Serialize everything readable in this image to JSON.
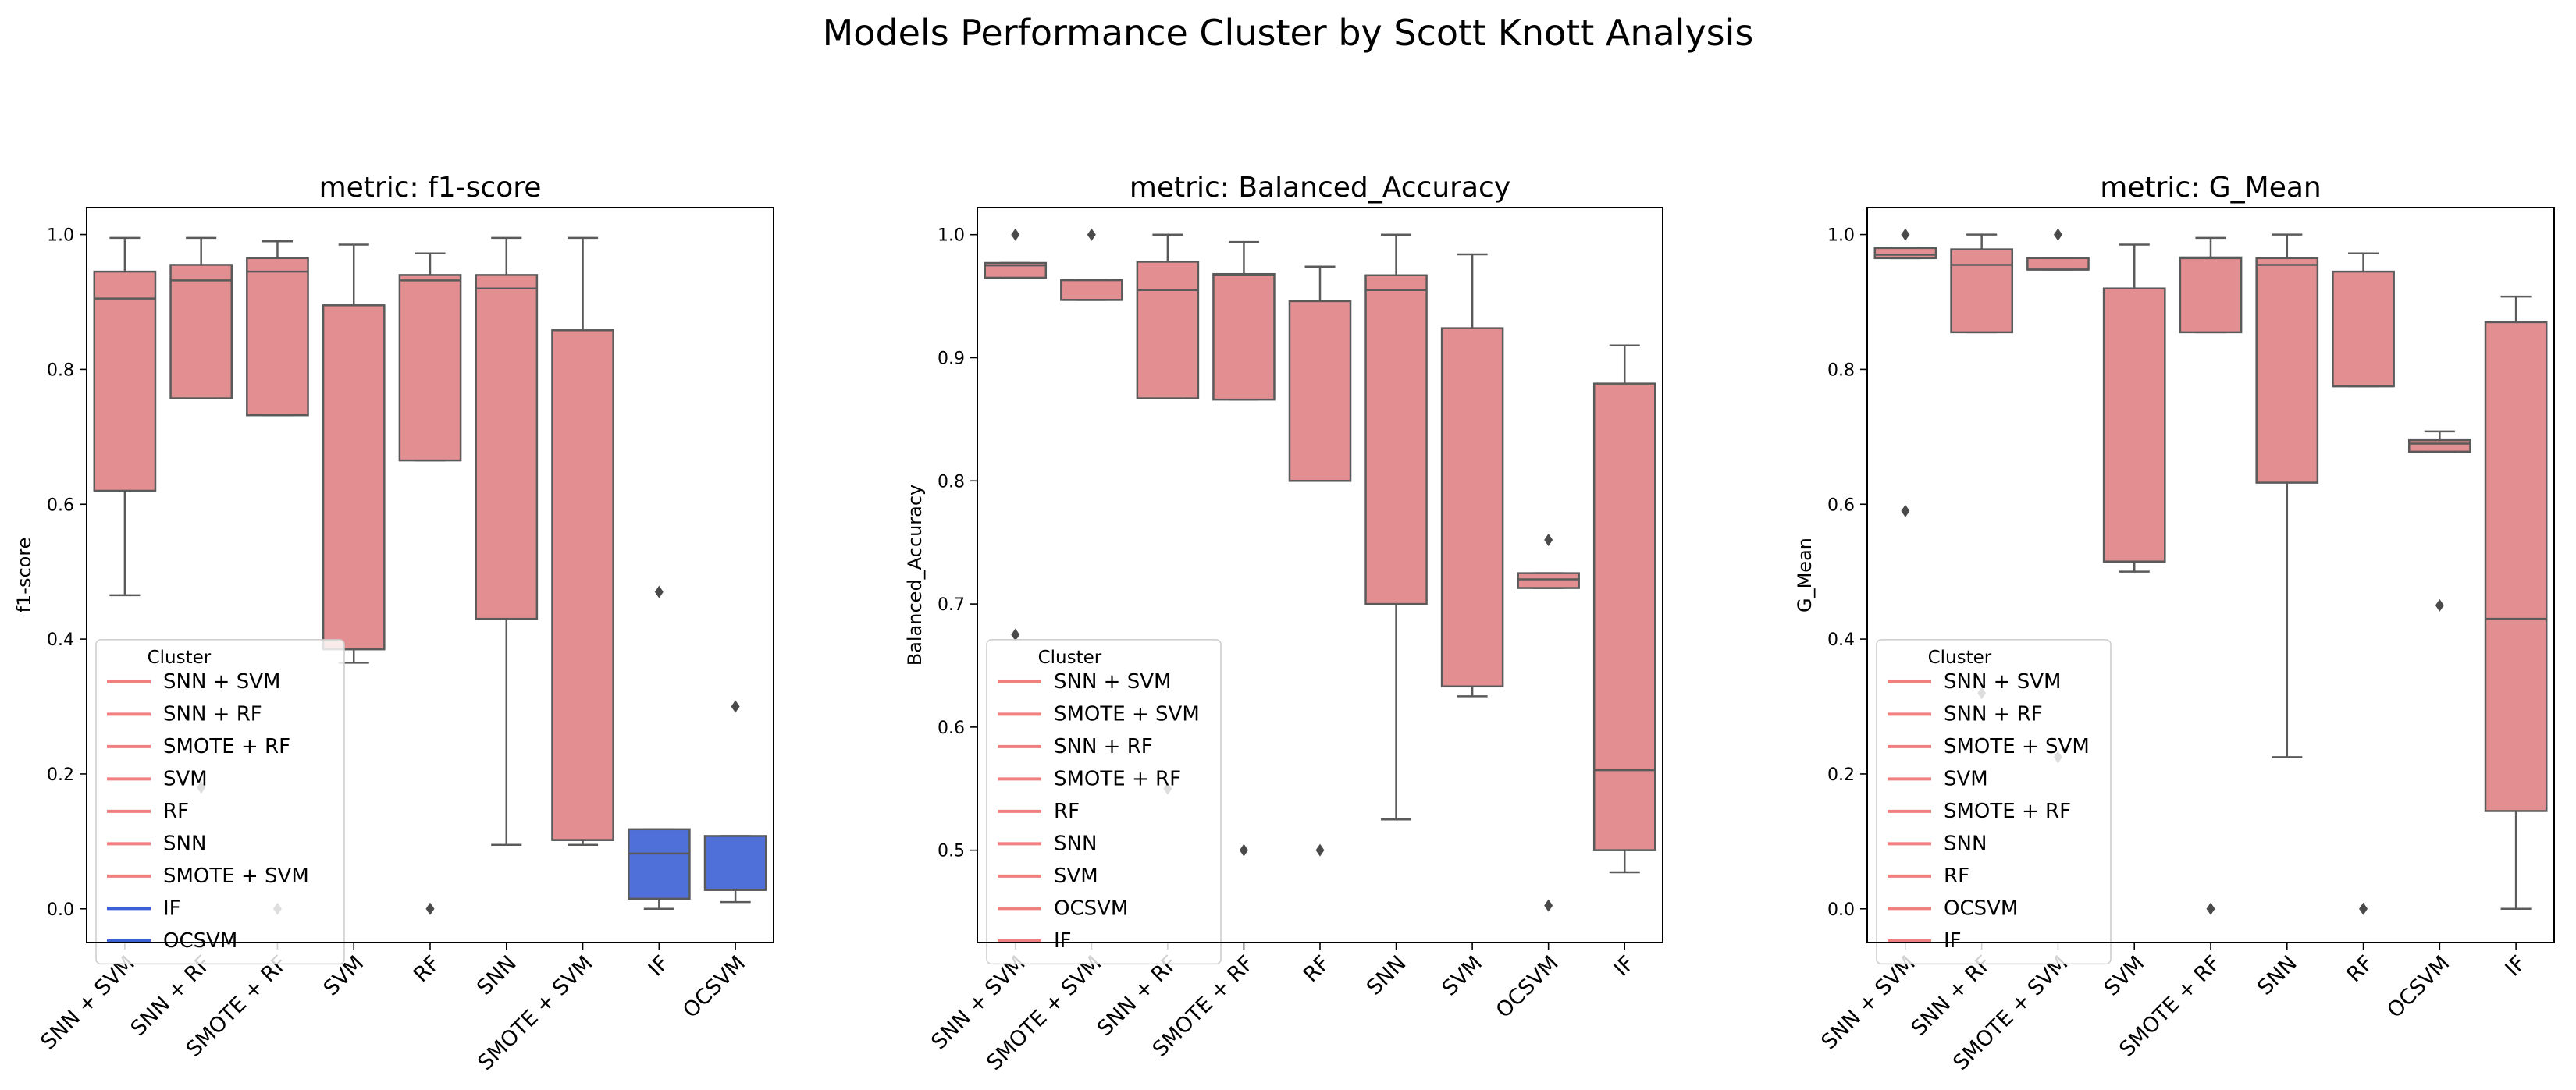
{
  "colors": {
    "pink": "#e38f91",
    "blue": "#4f6fd9",
    "legend_pink": "#f07f7f",
    "legend_blue": "#3b5fd6",
    "line": "#5a5a5a"
  },
  "chart_data": [
    {
      "type": "box",
      "figure_title": "Models Performance Cluster by Scott Knott Analysis",
      "title": "metric: f1-score",
      "ylabel": "f1-score",
      "xlabel": "",
      "ylim": [
        -0.05,
        1.04
      ],
      "yticks": [
        0.0,
        0.2,
        0.4,
        0.6,
        0.8,
        1.0
      ],
      "ytick_labels": [
        "0.0",
        "0.2",
        "0.4",
        "0.6",
        "0.8",
        "1.0"
      ],
      "categories": [
        "SNN + SVM",
        "SNN + RF",
        "SMOTE + RF",
        "SVM",
        "RF",
        "SNN",
        "SMOTE + SVM",
        "IF",
        "OCSVM"
      ],
      "boxes": [
        {
          "whisker_low": 0.465,
          "q1": 0.62,
          "median": 0.905,
          "q3": 0.945,
          "whisker_high": 0.995,
          "outliers": [],
          "cluster": 1
        },
        {
          "whisker_low": 0.757,
          "q1": 0.757,
          "median": 0.932,
          "q3": 0.955,
          "whisker_high": 0.995,
          "outliers": [
            0.18
          ],
          "cluster": 1
        },
        {
          "whisker_low": 0.732,
          "q1": 0.732,
          "median": 0.945,
          "q3": 0.965,
          "whisker_high": 0.99,
          "outliers": [
            0.0
          ],
          "cluster": 1
        },
        {
          "whisker_low": 0.365,
          "q1": 0.385,
          "median": 0.385,
          "q3": 0.895,
          "whisker_high": 0.985,
          "outliers": [],
          "cluster": 1
        },
        {
          "whisker_low": 0.665,
          "q1": 0.665,
          "median": 0.932,
          "q3": 0.94,
          "whisker_high": 0.972,
          "outliers": [
            0.0
          ],
          "cluster": 1
        },
        {
          "whisker_low": 0.095,
          "q1": 0.43,
          "median": 0.92,
          "q3": 0.94,
          "whisker_high": 0.995,
          "outliers": [],
          "cluster": 1
        },
        {
          "whisker_low": 0.095,
          "q1": 0.102,
          "median": 0.102,
          "q3": 0.858,
          "whisker_high": 0.995,
          "outliers": [],
          "cluster": 1
        },
        {
          "whisker_low": 0.0,
          "q1": 0.015,
          "median": 0.082,
          "q3": 0.118,
          "whisker_high": 0.118,
          "outliers": [
            0.47
          ],
          "cluster": 2
        },
        {
          "whisker_low": 0.01,
          "q1": 0.028,
          "median": 0.028,
          "q3": 0.108,
          "whisker_high": 0.108,
          "outliers": [
            0.3
          ],
          "cluster": 2
        }
      ],
      "legend_title": "Cluster",
      "legend": [
        {
          "label": "SNN + SVM",
          "cluster": 1
        },
        {
          "label": "SNN + RF",
          "cluster": 1
        },
        {
          "label": "SMOTE + RF",
          "cluster": 1
        },
        {
          "label": "SVM",
          "cluster": 1
        },
        {
          "label": "RF",
          "cluster": 1
        },
        {
          "label": "SNN",
          "cluster": 1
        },
        {
          "label": "SMOTE + SVM",
          "cluster": 1
        },
        {
          "label": "IF",
          "cluster": 2
        },
        {
          "label": "OCSVM",
          "cluster": 2
        }
      ],
      "legend_position": "lower-left"
    },
    {
      "type": "box",
      "title": "metric: Balanced_Accuracy",
      "ylabel": "Balanced_Accuracy",
      "xlabel": "",
      "ylim": [
        0.425,
        1.022
      ],
      "yticks": [
        0.5,
        0.6,
        0.7,
        0.8,
        0.9,
        1.0
      ],
      "ytick_labels": [
        "0.5",
        "0.6",
        "0.7",
        "0.8",
        "0.9",
        "1.0"
      ],
      "categories": [
        "SNN + SVM",
        "SMOTE + SVM",
        "SNN + RF",
        "SMOTE + RF",
        "RF",
        "SNN",
        "SVM",
        "OCSVM",
        "IF"
      ],
      "boxes": [
        {
          "whisker_low": 0.965,
          "q1": 0.965,
          "median": 0.975,
          "q3": 0.977,
          "whisker_high": 0.977,
          "outliers": [
            1.0,
            0.675
          ],
          "cluster": 1
        },
        {
          "whisker_low": 0.947,
          "q1": 0.947,
          "median": 0.947,
          "q3": 0.963,
          "whisker_high": 0.963,
          "outliers": [
            1.0
          ],
          "cluster": 1
        },
        {
          "whisker_low": 0.867,
          "q1": 0.867,
          "median": 0.955,
          "q3": 0.978,
          "whisker_high": 1.0,
          "outliers": [
            0.55
          ],
          "cluster": 1
        },
        {
          "whisker_low": 0.866,
          "q1": 0.866,
          "median": 0.967,
          "q3": 0.968,
          "whisker_high": 0.994,
          "outliers": [
            0.5
          ],
          "cluster": 1
        },
        {
          "whisker_low": 0.8,
          "q1": 0.8,
          "median": 0.8,
          "q3": 0.946,
          "whisker_high": 0.974,
          "outliers": [
            0.5
          ],
          "cluster": 1
        },
        {
          "whisker_low": 0.525,
          "q1": 0.7,
          "median": 0.955,
          "q3": 0.967,
          "whisker_high": 1.0,
          "outliers": [],
          "cluster": 1
        },
        {
          "whisker_low": 0.625,
          "q1": 0.633,
          "median": 0.633,
          "q3": 0.924,
          "whisker_high": 0.984,
          "outliers": [],
          "cluster": 1
        },
        {
          "whisker_low": 0.713,
          "q1": 0.713,
          "median": 0.72,
          "q3": 0.725,
          "whisker_high": 0.725,
          "outliers": [
            0.752,
            0.455
          ],
          "cluster": 1
        },
        {
          "whisker_low": 0.482,
          "q1": 0.5,
          "median": 0.565,
          "q3": 0.879,
          "whisker_high": 0.91,
          "outliers": [],
          "cluster": 1
        }
      ],
      "legend_title": "Cluster",
      "legend": [
        {
          "label": "SNN + SVM",
          "cluster": 1
        },
        {
          "label": "SMOTE + SVM",
          "cluster": 1
        },
        {
          "label": "SNN + RF",
          "cluster": 1
        },
        {
          "label": "SMOTE + RF",
          "cluster": 1
        },
        {
          "label": "RF",
          "cluster": 1
        },
        {
          "label": "SNN",
          "cluster": 1
        },
        {
          "label": "SVM",
          "cluster": 1
        },
        {
          "label": "OCSVM",
          "cluster": 1
        },
        {
          "label": "IF",
          "cluster": 1
        }
      ],
      "legend_position": "lower-left"
    },
    {
      "type": "box",
      "title": "metric: G_Mean",
      "ylabel": "G_Mean",
      "xlabel": "",
      "ylim": [
        -0.05,
        1.04
      ],
      "yticks": [
        0.0,
        0.2,
        0.4,
        0.6,
        0.8,
        1.0
      ],
      "ytick_labels": [
        "0.0",
        "0.2",
        "0.4",
        "0.6",
        "0.8",
        "1.0"
      ],
      "categories": [
        "SNN + SVM",
        "SNN + RF",
        "SMOTE + SVM",
        "SVM",
        "SMOTE + RF",
        "SNN",
        "RF",
        "OCSVM",
        "IF"
      ],
      "boxes": [
        {
          "whisker_low": 0.965,
          "q1": 0.965,
          "median": 0.97,
          "q3": 0.98,
          "whisker_high": 0.98,
          "outliers": [
            1.0,
            0.59
          ],
          "cluster": 1
        },
        {
          "whisker_low": 0.855,
          "q1": 0.855,
          "median": 0.955,
          "q3": 0.978,
          "whisker_high": 1.0,
          "outliers": [
            0.32
          ],
          "cluster": 1
        },
        {
          "whisker_low": 0.948,
          "q1": 0.948,
          "median": 0.948,
          "q3": 0.965,
          "whisker_high": 0.965,
          "outliers": [
            1.0,
            0.225
          ],
          "cluster": 1
        },
        {
          "whisker_low": 0.5,
          "q1": 0.515,
          "median": 0.515,
          "q3": 0.92,
          "whisker_high": 0.985,
          "outliers": [],
          "cluster": 1
        },
        {
          "whisker_low": 0.855,
          "q1": 0.855,
          "median": 0.965,
          "q3": 0.966,
          "whisker_high": 0.995,
          "outliers": [
            0.0
          ],
          "cluster": 1
        },
        {
          "whisker_low": 0.225,
          "q1": 0.632,
          "median": 0.955,
          "q3": 0.965,
          "whisker_high": 1.0,
          "outliers": [],
          "cluster": 1
        },
        {
          "whisker_low": 0.775,
          "q1": 0.775,
          "median": 0.775,
          "q3": 0.945,
          "whisker_high": 0.972,
          "outliers": [
            0.0
          ],
          "cluster": 1
        },
        {
          "whisker_low": 0.678,
          "q1": 0.678,
          "median": 0.69,
          "q3": 0.695,
          "whisker_high": 0.708,
          "outliers": [
            0.45
          ],
          "cluster": 1
        },
        {
          "whisker_low": 0.0,
          "q1": 0.145,
          "median": 0.43,
          "q3": 0.87,
          "whisker_high": 0.908,
          "outliers": [],
          "cluster": 1
        }
      ],
      "legend_title": "Cluster",
      "legend": [
        {
          "label": "SNN + SVM",
          "cluster": 1
        },
        {
          "label": "SNN + RF",
          "cluster": 1
        },
        {
          "label": "SMOTE + SVM",
          "cluster": 1
        },
        {
          "label": "SVM",
          "cluster": 1
        },
        {
          "label": "SMOTE + RF",
          "cluster": 1
        },
        {
          "label": "SNN",
          "cluster": 1
        },
        {
          "label": "RF",
          "cluster": 1
        },
        {
          "label": "OCSVM",
          "cluster": 1
        },
        {
          "label": "IF",
          "cluster": 1
        }
      ],
      "legend_position": "lower-left"
    }
  ]
}
